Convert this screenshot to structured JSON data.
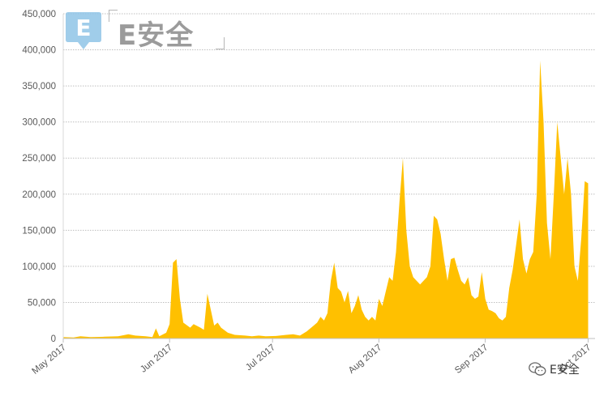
{
  "watermark": {
    "logo_letter": "E",
    "logo_text": "E安全",
    "footer_text": "E安全",
    "footer_icon": "wechat-icon"
  },
  "chart_data": {
    "type": "area",
    "title": "",
    "xlabel": "",
    "ylabel": "",
    "ylim": [
      0,
      450000
    ],
    "yticks": [
      "0",
      "50,000",
      "100,000",
      "150,000",
      "200,000",
      "250,000",
      "300,000",
      "350,000",
      "400,000",
      "450,000"
    ],
    "ytick_values": [
      0,
      50000,
      100000,
      150000,
      200000,
      250000,
      300000,
      350000,
      400000,
      450000
    ],
    "xticks": [
      "May 2017",
      "Jun 2017",
      "Jul 2017",
      "Aug 2017",
      "Sep 2017",
      "Oct 2017"
    ],
    "xtick_days": [
      0,
      31,
      61,
      92,
      123,
      153
    ],
    "xlim_days": [
      0,
      155
    ],
    "grid": true,
    "color": "#FFC000",
    "series": [
      {
        "points": [
          [
            0,
            2000
          ],
          [
            3,
            1500
          ],
          [
            5,
            3000
          ],
          [
            8,
            2000
          ],
          [
            12,
            2500
          ],
          [
            16,
            3000
          ],
          [
            19,
            6000
          ],
          [
            21,
            4000
          ],
          [
            24,
            3000
          ],
          [
            26,
            2000
          ],
          [
            27,
            14000
          ],
          [
            28,
            3000
          ],
          [
            30,
            8000
          ],
          [
            31,
            20000
          ],
          [
            32,
            105000
          ],
          [
            33,
            110000
          ],
          [
            34,
            55000
          ],
          [
            35,
            22000
          ],
          [
            37,
            15000
          ],
          [
            38,
            20000
          ],
          [
            40,
            15000
          ],
          [
            41,
            12000
          ],
          [
            42,
            62000
          ],
          [
            43,
            40000
          ],
          [
            44,
            18000
          ],
          [
            45,
            22000
          ],
          [
            46,
            15000
          ],
          [
            48,
            8000
          ],
          [
            50,
            5000
          ],
          [
            53,
            4000
          ],
          [
            55,
            3000
          ],
          [
            57,
            4000
          ],
          [
            59,
            3000
          ],
          [
            62,
            3500
          ],
          [
            65,
            5000
          ],
          [
            67,
            6000
          ],
          [
            69,
            4000
          ],
          [
            71,
            10000
          ],
          [
            73,
            18000
          ],
          [
            74,
            22000
          ],
          [
            75,
            30000
          ],
          [
            76,
            25000
          ],
          [
            77,
            35000
          ],
          [
            78,
            80000
          ],
          [
            79,
            105000
          ],
          [
            80,
            70000
          ],
          [
            81,
            65000
          ],
          [
            82,
            50000
          ],
          [
            83,
            66000
          ],
          [
            84,
            35000
          ],
          [
            85,
            45000
          ],
          [
            86,
            60000
          ],
          [
            87,
            40000
          ],
          [
            88,
            30000
          ],
          [
            89,
            25000
          ],
          [
            90,
            30000
          ],
          [
            91,
            25000
          ],
          [
            92,
            55000
          ],
          [
            93,
            45000
          ],
          [
            94,
            65000
          ],
          [
            95,
            85000
          ],
          [
            96,
            80000
          ],
          [
            97,
            120000
          ],
          [
            98,
            190000
          ],
          [
            99,
            250000
          ],
          [
            100,
            150000
          ],
          [
            101,
            100000
          ],
          [
            102,
            85000
          ],
          [
            103,
            80000
          ],
          [
            104,
            75000
          ],
          [
            105,
            80000
          ],
          [
            106,
            85000
          ],
          [
            107,
            100000
          ],
          [
            108,
            170000
          ],
          [
            109,
            165000
          ],
          [
            110,
            145000
          ],
          [
            111,
            110000
          ],
          [
            112,
            80000
          ],
          [
            113,
            110000
          ],
          [
            114,
            112000
          ],
          [
            115,
            95000
          ],
          [
            116,
            80000
          ],
          [
            117,
            75000
          ],
          [
            118,
            85000
          ],
          [
            119,
            60000
          ],
          [
            120,
            55000
          ],
          [
            121,
            58000
          ],
          [
            122,
            92000
          ],
          [
            123,
            55000
          ],
          [
            124,
            40000
          ],
          [
            125,
            38000
          ],
          [
            126,
            35000
          ],
          [
            127,
            28000
          ],
          [
            128,
            25000
          ],
          [
            129,
            30000
          ],
          [
            130,
            70000
          ],
          [
            131,
            95000
          ],
          [
            132,
            130000
          ],
          [
            133,
            165000
          ],
          [
            134,
            110000
          ],
          [
            135,
            90000
          ],
          [
            136,
            110000
          ],
          [
            137,
            120000
          ],
          [
            138,
            200000
          ],
          [
            139,
            385000
          ],
          [
            140,
            300000
          ],
          [
            141,
            160000
          ],
          [
            142,
            110000
          ],
          [
            143,
            200000
          ],
          [
            144,
            300000
          ],
          [
            145,
            250000
          ],
          [
            146,
            200000
          ],
          [
            147,
            250000
          ],
          [
            148,
            200000
          ],
          [
            149,
            100000
          ],
          [
            150,
            80000
          ],
          [
            151,
            140000
          ],
          [
            152,
            218000
          ],
          [
            153,
            215000
          ]
        ]
      }
    ]
  }
}
